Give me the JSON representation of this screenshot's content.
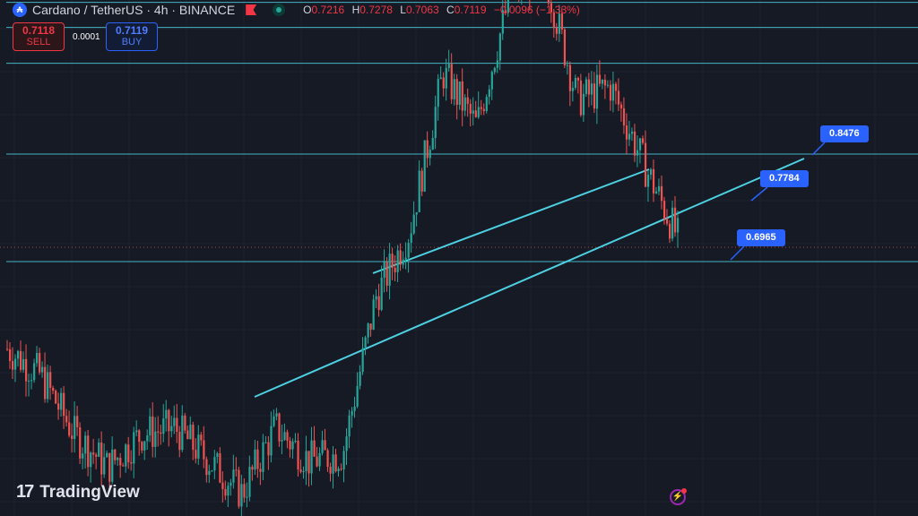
{
  "header": {
    "symbol_title": "Cardano / TetherUS · 4h · BINANCE",
    "ohlc": {
      "o_label": "O",
      "o": "0.7216",
      "h_label": "H",
      "h": "0.7278",
      "l_label": "L",
      "l": "0.7063",
      "c_label": "C",
      "c": "0.7119",
      "change": "−0.0096 (−1.33%)"
    }
  },
  "trade": {
    "sell_price": "0.7118",
    "sell_label": "SELL",
    "spread": "0.0001",
    "buy_price": "0.7119",
    "buy_label": "BUY"
  },
  "annotations": {
    "labels": [
      "0.8476",
      "0.7784",
      "0.6965"
    ]
  },
  "branding": {
    "logo_text": "TradingView"
  },
  "colors": {
    "up": "#26a69a",
    "down": "#ef5350",
    "level_line": "#4dd0e1",
    "accent": "#2962ff",
    "background": "#161a25"
  },
  "icons": [
    "cardano-symbol-icon",
    "flag-icon",
    "market-status-icon",
    "tradingview-logo-icon",
    "lightning-icon"
  ],
  "chart_data": {
    "type": "candlestick",
    "symbol": "Cardano / TetherUS",
    "timeframe": "4h",
    "exchange": "BINANCE",
    "horizontal_levels": [
      0.6965,
      0.7784,
      0.8476
    ],
    "last_ohlc": {
      "open": 0.7216,
      "high": 0.7278,
      "low": 0.7063,
      "close": 0.7119
    },
    "price_path": [
      0.63,
      0.61,
      0.565,
      0.54,
      0.565,
      0.57,
      0.545,
      0.52,
      0.57,
      0.545,
      0.55,
      0.67,
      0.72,
      0.84,
      0.8,
      0.9,
      0.92,
      0.82,
      0.83,
      0.77,
      0.715
    ]
  }
}
